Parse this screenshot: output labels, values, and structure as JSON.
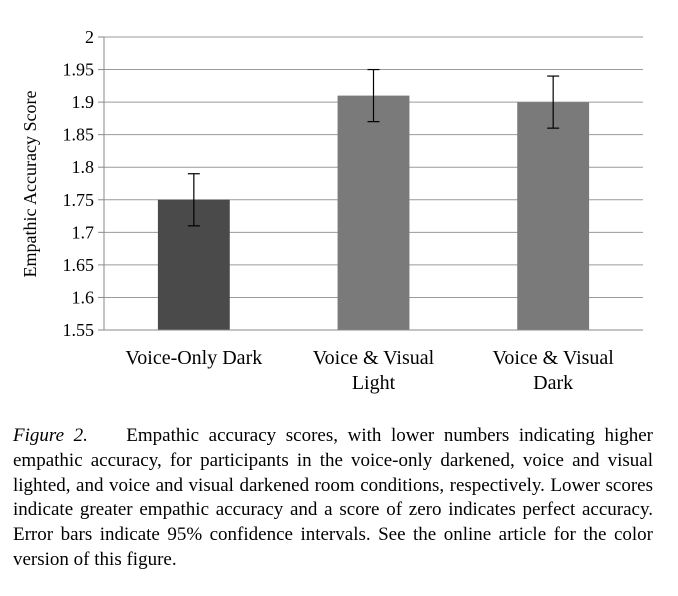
{
  "chart_data": {
    "type": "bar",
    "title": "",
    "xlabel": "",
    "ylabel": "Empathic Accuracy Score",
    "ylim": [
      1.55,
      2
    ],
    "yticks": [
      "1.55",
      "1.6",
      "1.65",
      "1.7",
      "1.75",
      "1.8",
      "1.85",
      "1.9",
      "1.95",
      "2"
    ],
    "categories": [
      [
        "Voice-Only Dark"
      ],
      [
        "Voice & Visual",
        "Light"
      ],
      [
        "Voice & Visual",
        "Dark"
      ]
    ],
    "values": [
      1.75,
      1.91,
      1.9
    ],
    "error_low": [
      1.71,
      1.87,
      1.86
    ],
    "error_high": [
      1.79,
      1.95,
      1.94
    ],
    "bar_colors": [
      "#4a4a4a",
      "#7a7a7a",
      "#7a7a7a"
    ],
    "grid": true,
    "legend": "none"
  },
  "caption": {
    "label": "Figure 2.",
    "text": "Empathic accuracy scores, with lower numbers indicating higher empathic accuracy, for participants in the voice-only darkened, voice and visual lighted, and voice and visual darkened room conditions, respectively. Lower scores indicate greater empathic accuracy and a score of zero indicates perfect accuracy. Error bars indicate 95% confidence intervals. See the online article for the color version of this figure."
  }
}
